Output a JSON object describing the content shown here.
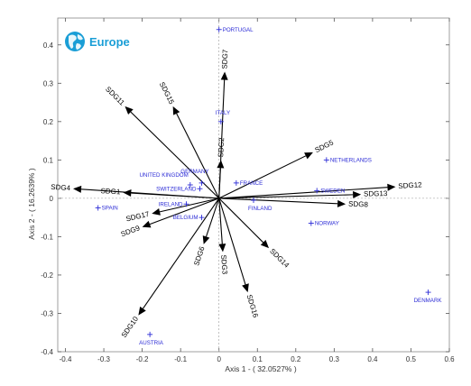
{
  "colors": {
    "country": "#2b2bd6",
    "vector": "#000000",
    "logo": "#1a9ed6",
    "axis": "#333333"
  },
  "logo": {
    "text": "Europe",
    "icon": "globe-icon"
  },
  "chart_data": {
    "type": "scatter",
    "subtype": "biplot",
    "xlabel": "Axis 1 - ( 32.0527% )",
    "ylabel": "Axis 2 - ( 16.2639% )",
    "xlim": [
      -0.42,
      0.6
    ],
    "ylim": [
      -0.4,
      0.47
    ],
    "xticks": [
      -0.4,
      -0.3,
      -0.2,
      -0.1,
      0,
      0.1,
      0.2,
      0.3,
      0.4,
      0.5,
      0.6
    ],
    "yticks": [
      -0.4,
      -0.3,
      -0.2,
      -0.1,
      0,
      0.1,
      0.2,
      0.3,
      0.4
    ],
    "xtick_labels": [
      "-0.4",
      "-0.3",
      "-0.2",
      "-0.1",
      "0",
      "0.1",
      "0.2",
      "0.3",
      "0.4",
      "0.5",
      "0.6"
    ],
    "ytick_labels": [
      "-0.4",
      "-0.3",
      "-0.2",
      "-0.1",
      "0",
      "0.1",
      "0.2",
      "0.3",
      "0.4"
    ],
    "grid": false,
    "points": [
      {
        "label": "PORTUGAL",
        "x": 0.0,
        "y": 0.44
      },
      {
        "label": "ITALY",
        "x": 0.005,
        "y": 0.2
      },
      {
        "label": "GERMANY",
        "x": -0.045,
        "y": 0.04
      },
      {
        "label": "UNITED KINGDOM",
        "x": -0.075,
        "y": 0.035
      },
      {
        "label": "SWITZERLAND",
        "x": -0.05,
        "y": 0.025
      },
      {
        "label": "IRELAND",
        "x": -0.085,
        "y": -0.015
      },
      {
        "label": "SPAIN",
        "x": -0.315,
        "y": -0.025
      },
      {
        "label": "BELGIUM",
        "x": -0.045,
        "y": -0.05
      },
      {
        "label": "FRANCE",
        "x": 0.045,
        "y": 0.04
      },
      {
        "label": "FINLAND",
        "x": 0.09,
        "y": -0.005
      },
      {
        "label": "NETHERLANDS",
        "x": 0.28,
        "y": 0.1
      },
      {
        "label": "SWEDEN",
        "x": 0.255,
        "y": 0.02
      },
      {
        "label": "NORWAY",
        "x": 0.24,
        "y": -0.065
      },
      {
        "label": "DENMARK",
        "x": 0.545,
        "y": -0.245
      },
      {
        "label": "AUSTRIA",
        "x": -0.18,
        "y": -0.355
      }
    ],
    "vectors": [
      {
        "label": "SDG7",
        "x": 0.015,
        "y": 0.33
      },
      {
        "label": "SDG15",
        "x": -0.12,
        "y": 0.24
      },
      {
        "label": "SDG11",
        "x": -0.245,
        "y": 0.24
      },
      {
        "label": "SDG2",
        "x": 0.005,
        "y": 0.1
      },
      {
        "label": "SDG5",
        "x": 0.245,
        "y": 0.12
      },
      {
        "label": "SDG4",
        "x": -0.38,
        "y": 0.025
      },
      {
        "label": "SDG1",
        "x": -0.25,
        "y": 0.015
      },
      {
        "label": "SDG12",
        "x": 0.46,
        "y": 0.03
      },
      {
        "label": "SDG13",
        "x": 0.37,
        "y": 0.01
      },
      {
        "label": "SDG8",
        "x": 0.33,
        "y": -0.015
      },
      {
        "label": "SDG17",
        "x": -0.175,
        "y": -0.04
      },
      {
        "label": "SDG9",
        "x": -0.2,
        "y": -0.075
      },
      {
        "label": "SDG6",
        "x": -0.04,
        "y": -0.12
      },
      {
        "label": "SDG3",
        "x": 0.01,
        "y": -0.14
      },
      {
        "label": "SDG14",
        "x": 0.13,
        "y": -0.13
      },
      {
        "label": "SDG16",
        "x": 0.075,
        "y": -0.245
      },
      {
        "label": "SDG10",
        "x": -0.21,
        "y": -0.305
      }
    ]
  }
}
